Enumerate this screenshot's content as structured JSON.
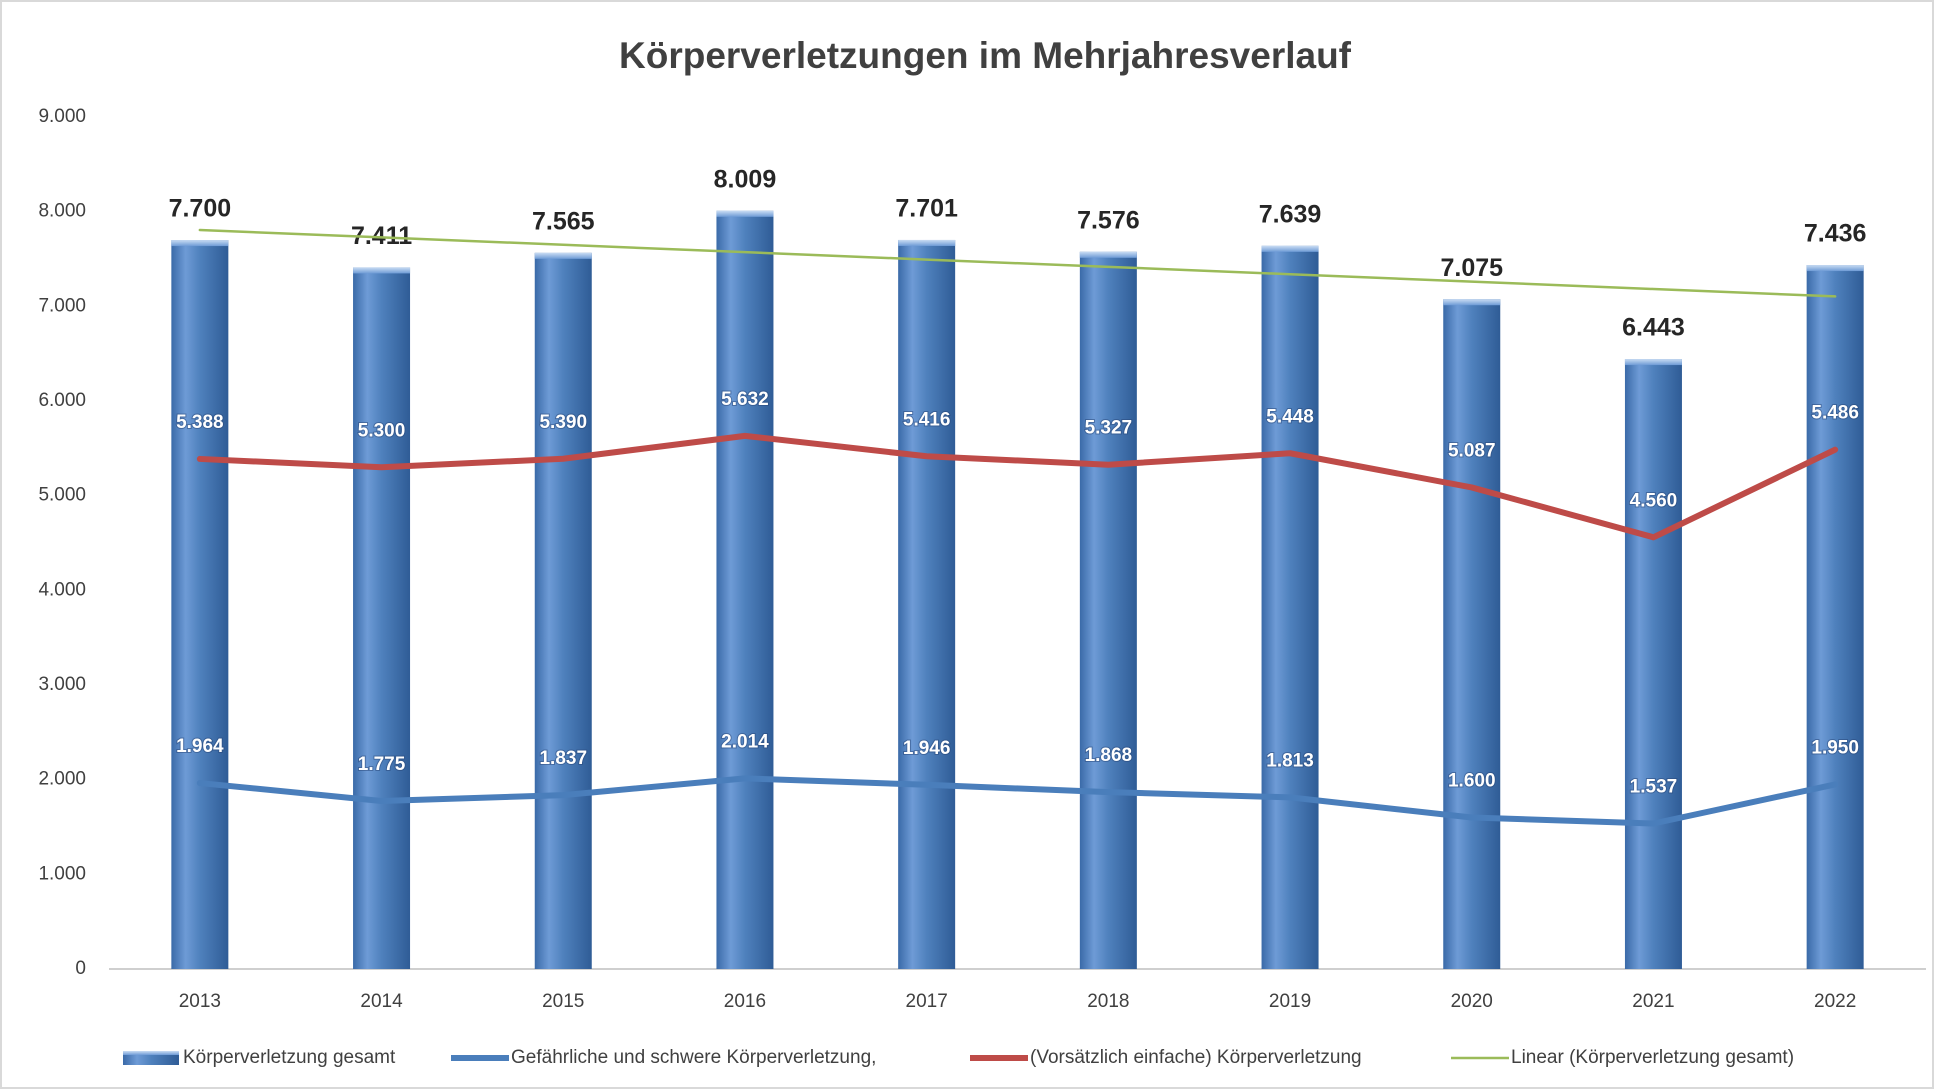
{
  "chart_data": {
    "type": "bar_line",
    "title": "Körperverletzungen im Mehrjahresverlauf",
    "categories": [
      "2013",
      "2014",
      "2015",
      "2016",
      "2017",
      "2018",
      "2019",
      "2020",
      "2021",
      "2022"
    ],
    "series": [
      {
        "name": "Körperverletzung gesamt",
        "type": "bar",
        "color": "#4f81bd",
        "values": [
          7700,
          7411,
          7565,
          8009,
          7701,
          7576,
          7639,
          7075,
          6443,
          7436
        ],
        "value_labels": [
          "7.700",
          "7.411",
          "7.565",
          "8.009",
          "7.701",
          "7.576",
          "7.639",
          "7.075",
          "6.443",
          "7.436"
        ]
      },
      {
        "name": "Gefährliche und schwere Körperverletzung,",
        "type": "line",
        "color": "#4a7ebb",
        "values": [
          1964,
          1775,
          1837,
          2014,
          1946,
          1868,
          1813,
          1600,
          1537,
          1950
        ],
        "value_labels": [
          "1.964",
          "1.775",
          "1.837",
          "2.014",
          "1.946",
          "1.868",
          "1.813",
          "1.600",
          "1.537",
          "1.950"
        ]
      },
      {
        "name": "(Vorsätzlich einfache) Körperverletzung",
        "type": "line",
        "color": "#be4b48",
        "values": [
          5388,
          5300,
          5390,
          5632,
          5416,
          5327,
          5448,
          5087,
          4560,
          5486
        ],
        "value_labels": [
          "5.388",
          "5.300",
          "5.390",
          "5.632",
          "5.416",
          "5.327",
          "5.448",
          "5.087",
          "4.560",
          "5.486"
        ]
      },
      {
        "name": "Linear (Körperverletzung gesamt)",
        "type": "trend",
        "color": "#9bbb59",
        "values": [
          7806,
          7728,
          7650,
          7572,
          7494,
          7417,
          7339,
          7261,
          7183,
          7105
        ]
      }
    ],
    "ylim": [
      0,
      9000
    ],
    "yticks": [
      0,
      {
        "value": 1000,
        "label": "1.000"
      },
      {
        "value": 2000,
        "label": "2.000"
      },
      {
        "value": 3000,
        "label": "3.000"
      },
      {
        "value": 4000,
        "label": "4.000"
      },
      {
        "value": 5000,
        "label": "5.000"
      },
      {
        "value": 6000,
        "label": "6.000"
      },
      {
        "value": 7000,
        "label": "7.000"
      },
      {
        "value": 8000,
        "label": "8.000"
      },
      {
        "value": 9000,
        "label": "9.000"
      }
    ],
    "grid": false,
    "legend": "bottom"
  }
}
